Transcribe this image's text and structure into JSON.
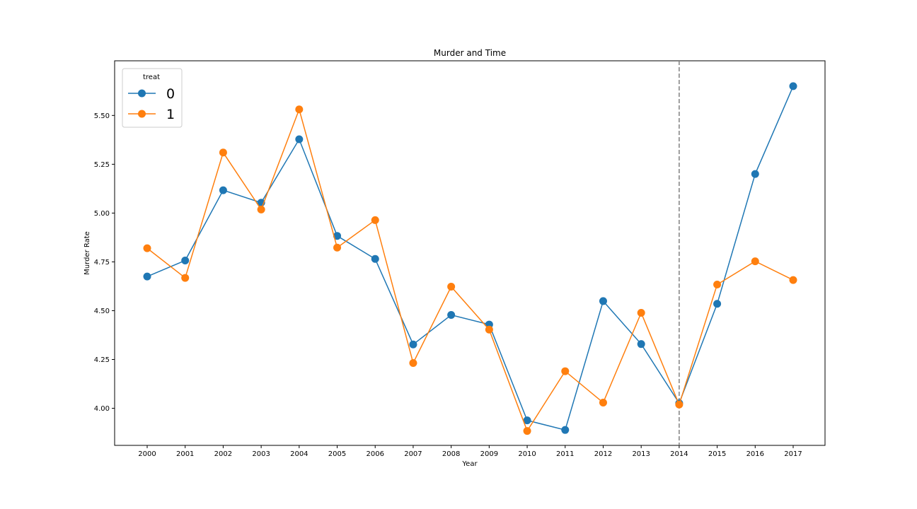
{
  "chart_data": {
    "type": "line",
    "title": "Murder and Time",
    "xlabel": "Year",
    "ylabel": "Murder Rate",
    "categories": [
      "2000",
      "2001",
      "2002",
      "2003",
      "2004",
      "2005",
      "2006",
      "2007",
      "2008",
      "2009",
      "2010",
      "2011",
      "2012",
      "2013",
      "2014",
      "2015",
      "2016",
      "2017"
    ],
    "ylim": [
      3.81,
      5.78
    ],
    "yticks": [
      "4.00",
      "4.25",
      "4.50",
      "4.75",
      "5.00",
      "5.25",
      "5.50"
    ],
    "legend": {
      "title": "treat",
      "placement": "top-left"
    },
    "vline": {
      "x": "2014",
      "style": "dashed",
      "color": "#808080"
    },
    "grid": false,
    "series": [
      {
        "name": "0",
        "color": "#1f77b4",
        "values": [
          4.675,
          4.757,
          5.117,
          5.053,
          5.378,
          4.883,
          4.765,
          4.327,
          4.478,
          4.429,
          3.938,
          3.889,
          4.549,
          4.329,
          4.026,
          4.535,
          5.2,
          5.65
        ]
      },
      {
        "name": "1",
        "color": "#ff7f0e",
        "values": [
          4.82,
          4.668,
          5.31,
          5.018,
          5.531,
          4.823,
          4.964,
          4.232,
          4.623,
          4.403,
          3.884,
          4.19,
          4.029,
          4.489,
          4.019,
          4.634,
          4.753,
          4.657
        ]
      }
    ]
  }
}
